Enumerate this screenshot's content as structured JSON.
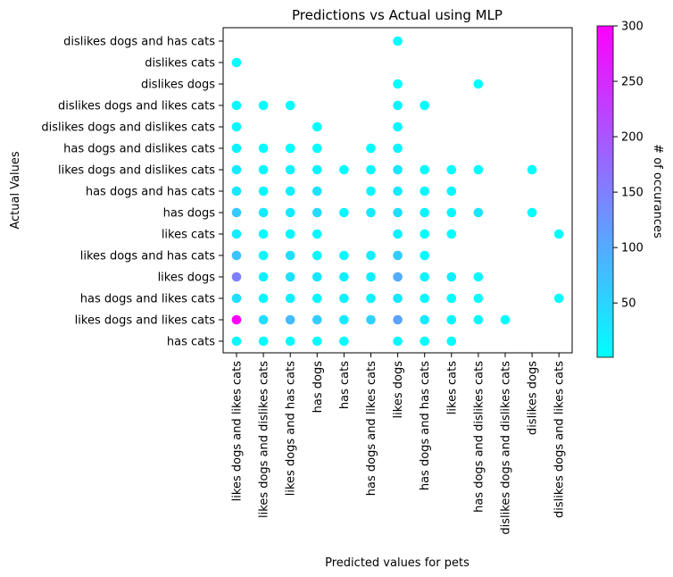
{
  "chart_data": {
    "type": "scatter",
    "title": "Predictions vs Actual using MLP",
    "xlabel": "Predicted values for pets",
    "ylabel": "Actual Values",
    "x_categories": [
      "likes dogs and likes cats",
      "likes dogs and dislikes cats",
      "likes dogs and has cats",
      "has dogs",
      "has cats",
      "has dogs and likes cats",
      "likes dogs",
      "has dogs and has cats",
      "likes cats",
      "has dogs and dislikes cats",
      "dislikes dogs and dislikes cats",
      "dislikes dogs",
      "dislikes dogs and likes cats"
    ],
    "y_categories": [
      "has cats",
      "likes dogs and likes cats",
      "has dogs and likes cats",
      "likes dogs",
      "likes dogs and has cats",
      "likes cats",
      "has dogs",
      "has dogs and has cats",
      "likes dogs and dislikes cats",
      "has dogs and dislikes cats",
      "dislikes dogs and dislikes cats",
      "dislikes dogs and likes cats",
      "dislikes dogs",
      "dislikes cats",
      "dislikes dogs and has cats"
    ],
    "colorbar": {
      "label": "# of occurances",
      "colormap": "cool",
      "min": 1,
      "max": 300,
      "ticks": [
        50,
        100,
        150,
        200,
        250,
        300
      ],
      "color_low": "#00ffff",
      "color_high": "#ff00ff"
    },
    "points": [
      {
        "x": 0,
        "y": 0,
        "count": 10
      },
      {
        "x": 1,
        "y": 0,
        "count": 3
      },
      {
        "x": 2,
        "y": 0,
        "count": 8
      },
      {
        "x": 3,
        "y": 0,
        "count": 3
      },
      {
        "x": 4,
        "y": 0,
        "count": 2
      },
      {
        "x": 6,
        "y": 0,
        "count": 10
      },
      {
        "x": 7,
        "y": 0,
        "count": 3
      },
      {
        "x": 8,
        "y": 0,
        "count": 3
      },
      {
        "x": 0,
        "y": 1,
        "count": 300
      },
      {
        "x": 1,
        "y": 1,
        "count": 40
      },
      {
        "x": 2,
        "y": 1,
        "count": 80
      },
      {
        "x": 3,
        "y": 1,
        "count": 60
      },
      {
        "x": 4,
        "y": 1,
        "count": 25
      },
      {
        "x": 5,
        "y": 1,
        "count": 55
      },
      {
        "x": 6,
        "y": 1,
        "count": 110
      },
      {
        "x": 7,
        "y": 1,
        "count": 25
      },
      {
        "x": 8,
        "y": 1,
        "count": 12
      },
      {
        "x": 9,
        "y": 1,
        "count": 10
      },
      {
        "x": 10,
        "y": 1,
        "count": 2
      },
      {
        "x": 0,
        "y": 2,
        "count": 40
      },
      {
        "x": 1,
        "y": 2,
        "count": 10
      },
      {
        "x": 2,
        "y": 2,
        "count": 20
      },
      {
        "x": 3,
        "y": 2,
        "count": 10
      },
      {
        "x": 4,
        "y": 2,
        "count": 15
      },
      {
        "x": 5,
        "y": 2,
        "count": 20
      },
      {
        "x": 6,
        "y": 2,
        "count": 30
      },
      {
        "x": 7,
        "y": 2,
        "count": 10
      },
      {
        "x": 8,
        "y": 2,
        "count": 5
      },
      {
        "x": 9,
        "y": 2,
        "count": 3
      },
      {
        "x": 12,
        "y": 2,
        "count": 2
      },
      {
        "x": 0,
        "y": 3,
        "count": 150
      },
      {
        "x": 1,
        "y": 3,
        "count": 15
      },
      {
        "x": 2,
        "y": 3,
        "count": 35
      },
      {
        "x": 3,
        "y": 3,
        "count": 30
      },
      {
        "x": 4,
        "y": 3,
        "count": 20
      },
      {
        "x": 5,
        "y": 3,
        "count": 20
      },
      {
        "x": 6,
        "y": 3,
        "count": 100
      },
      {
        "x": 7,
        "y": 3,
        "count": 15
      },
      {
        "x": 8,
        "y": 3,
        "count": 20
      },
      {
        "x": 9,
        "y": 3,
        "count": 5
      },
      {
        "x": 0,
        "y": 4,
        "count": 70
      },
      {
        "x": 1,
        "y": 4,
        "count": 10
      },
      {
        "x": 2,
        "y": 4,
        "count": 40
      },
      {
        "x": 3,
        "y": 4,
        "count": 10
      },
      {
        "x": 4,
        "y": 4,
        "count": 10
      },
      {
        "x": 5,
        "y": 4,
        "count": 20
      },
      {
        "x": 6,
        "y": 4,
        "count": 60
      },
      {
        "x": 7,
        "y": 4,
        "count": 5
      },
      {
        "x": 0,
        "y": 5,
        "count": 25
      },
      {
        "x": 1,
        "y": 5,
        "count": 5
      },
      {
        "x": 2,
        "y": 5,
        "count": 10
      },
      {
        "x": 3,
        "y": 5,
        "count": 10
      },
      {
        "x": 6,
        "y": 5,
        "count": 20
      },
      {
        "x": 7,
        "y": 5,
        "count": 5
      },
      {
        "x": 8,
        "y": 5,
        "count": 5
      },
      {
        "x": 12,
        "y": 5,
        "count": 2
      },
      {
        "x": 0,
        "y": 6,
        "count": 65
      },
      {
        "x": 1,
        "y": 6,
        "count": 25
      },
      {
        "x": 2,
        "y": 6,
        "count": 25
      },
      {
        "x": 3,
        "y": 6,
        "count": 45
      },
      {
        "x": 4,
        "y": 6,
        "count": 10
      },
      {
        "x": 5,
        "y": 6,
        "count": 25
      },
      {
        "x": 6,
        "y": 6,
        "count": 40
      },
      {
        "x": 7,
        "y": 6,
        "count": 15
      },
      {
        "x": 8,
        "y": 6,
        "count": 10
      },
      {
        "x": 9,
        "y": 6,
        "count": 30
      },
      {
        "x": 11,
        "y": 6,
        "count": 5
      },
      {
        "x": 0,
        "y": 7,
        "count": 30
      },
      {
        "x": 1,
        "y": 7,
        "count": 10
      },
      {
        "x": 2,
        "y": 7,
        "count": 20
      },
      {
        "x": 3,
        "y": 7,
        "count": 35
      },
      {
        "x": 5,
        "y": 7,
        "count": 10
      },
      {
        "x": 6,
        "y": 7,
        "count": 25
      },
      {
        "x": 7,
        "y": 7,
        "count": 10
      },
      {
        "x": 8,
        "y": 7,
        "count": 10
      },
      {
        "x": 0,
        "y": 8,
        "count": 25
      },
      {
        "x": 1,
        "y": 8,
        "count": 10
      },
      {
        "x": 2,
        "y": 8,
        "count": 15
      },
      {
        "x": 3,
        "y": 8,
        "count": 15
      },
      {
        "x": 4,
        "y": 8,
        "count": 3
      },
      {
        "x": 5,
        "y": 8,
        "count": 10
      },
      {
        "x": 6,
        "y": 8,
        "count": 30
      },
      {
        "x": 7,
        "y": 8,
        "count": 5
      },
      {
        "x": 8,
        "y": 8,
        "count": 3
      },
      {
        "x": 9,
        "y": 8,
        "count": 3
      },
      {
        "x": 11,
        "y": 8,
        "count": 2
      },
      {
        "x": 0,
        "y": 9,
        "count": 15
      },
      {
        "x": 1,
        "y": 9,
        "count": 5
      },
      {
        "x": 2,
        "y": 9,
        "count": 3
      },
      {
        "x": 3,
        "y": 9,
        "count": 5
      },
      {
        "x": 5,
        "y": 9,
        "count": 3
      },
      {
        "x": 6,
        "y": 9,
        "count": 15
      },
      {
        "x": 0,
        "y": 10,
        "count": 10
      },
      {
        "x": 3,
        "y": 10,
        "count": 3
      },
      {
        "x": 6,
        "y": 10,
        "count": 10
      },
      {
        "x": 0,
        "y": 11,
        "count": 10
      },
      {
        "x": 1,
        "y": 11,
        "count": 5
      },
      {
        "x": 2,
        "y": 11,
        "count": 3
      },
      {
        "x": 6,
        "y": 11,
        "count": 15
      },
      {
        "x": 7,
        "y": 11,
        "count": 2
      },
      {
        "x": 6,
        "y": 12,
        "count": 5
      },
      {
        "x": 9,
        "y": 12,
        "count": 2
      },
      {
        "x": 0,
        "y": 13,
        "count": 3
      },
      {
        "x": 6,
        "y": 14,
        "count": 2
      }
    ]
  }
}
